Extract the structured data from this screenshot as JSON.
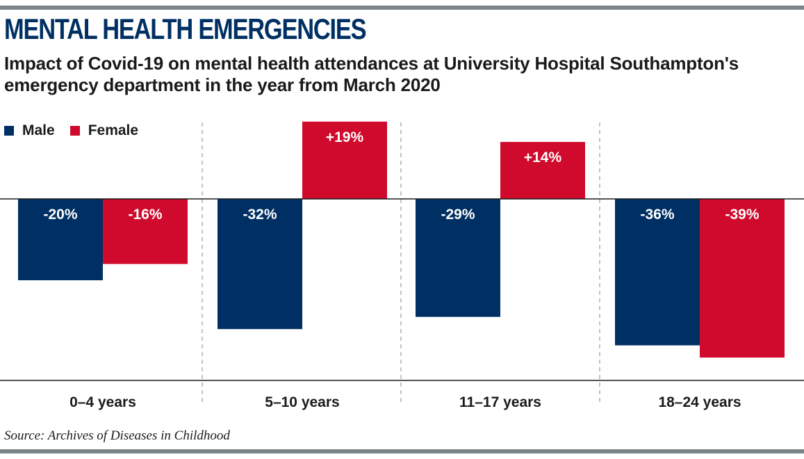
{
  "title": "MENTAL HEALTH EMERGENCIES",
  "subtitle": "Impact of Covid-19 on mental health attendances at University Hospital Southampton's emergency department in the year from March 2020",
  "source": "Source: Archives of Diseases in Childhood",
  "colors": {
    "male": "#003063",
    "female": "#cf0a2c",
    "rule": "#7b8489"
  },
  "chart_data": {
    "type": "bar",
    "title": "MENTAL HEALTH EMERGENCIES",
    "xlabel": "",
    "ylabel": "",
    "ylim": [
      -45,
      20
    ],
    "grid": false,
    "legend_position": "top-left",
    "categories": [
      "0–4 years",
      "5–10 years",
      "11–17 years",
      "18–24 years"
    ],
    "series": [
      {
        "name": "Male",
        "values": [
          -20,
          -32,
          -29,
          -36
        ],
        "labels": [
          "-20%",
          "-32%",
          "-29%",
          "-36%"
        ]
      },
      {
        "name": "Female",
        "values": [
          -16,
          19,
          14,
          -39
        ],
        "labels": [
          "-16%",
          "+19%",
          "+14%",
          "-39%"
        ]
      }
    ]
  }
}
